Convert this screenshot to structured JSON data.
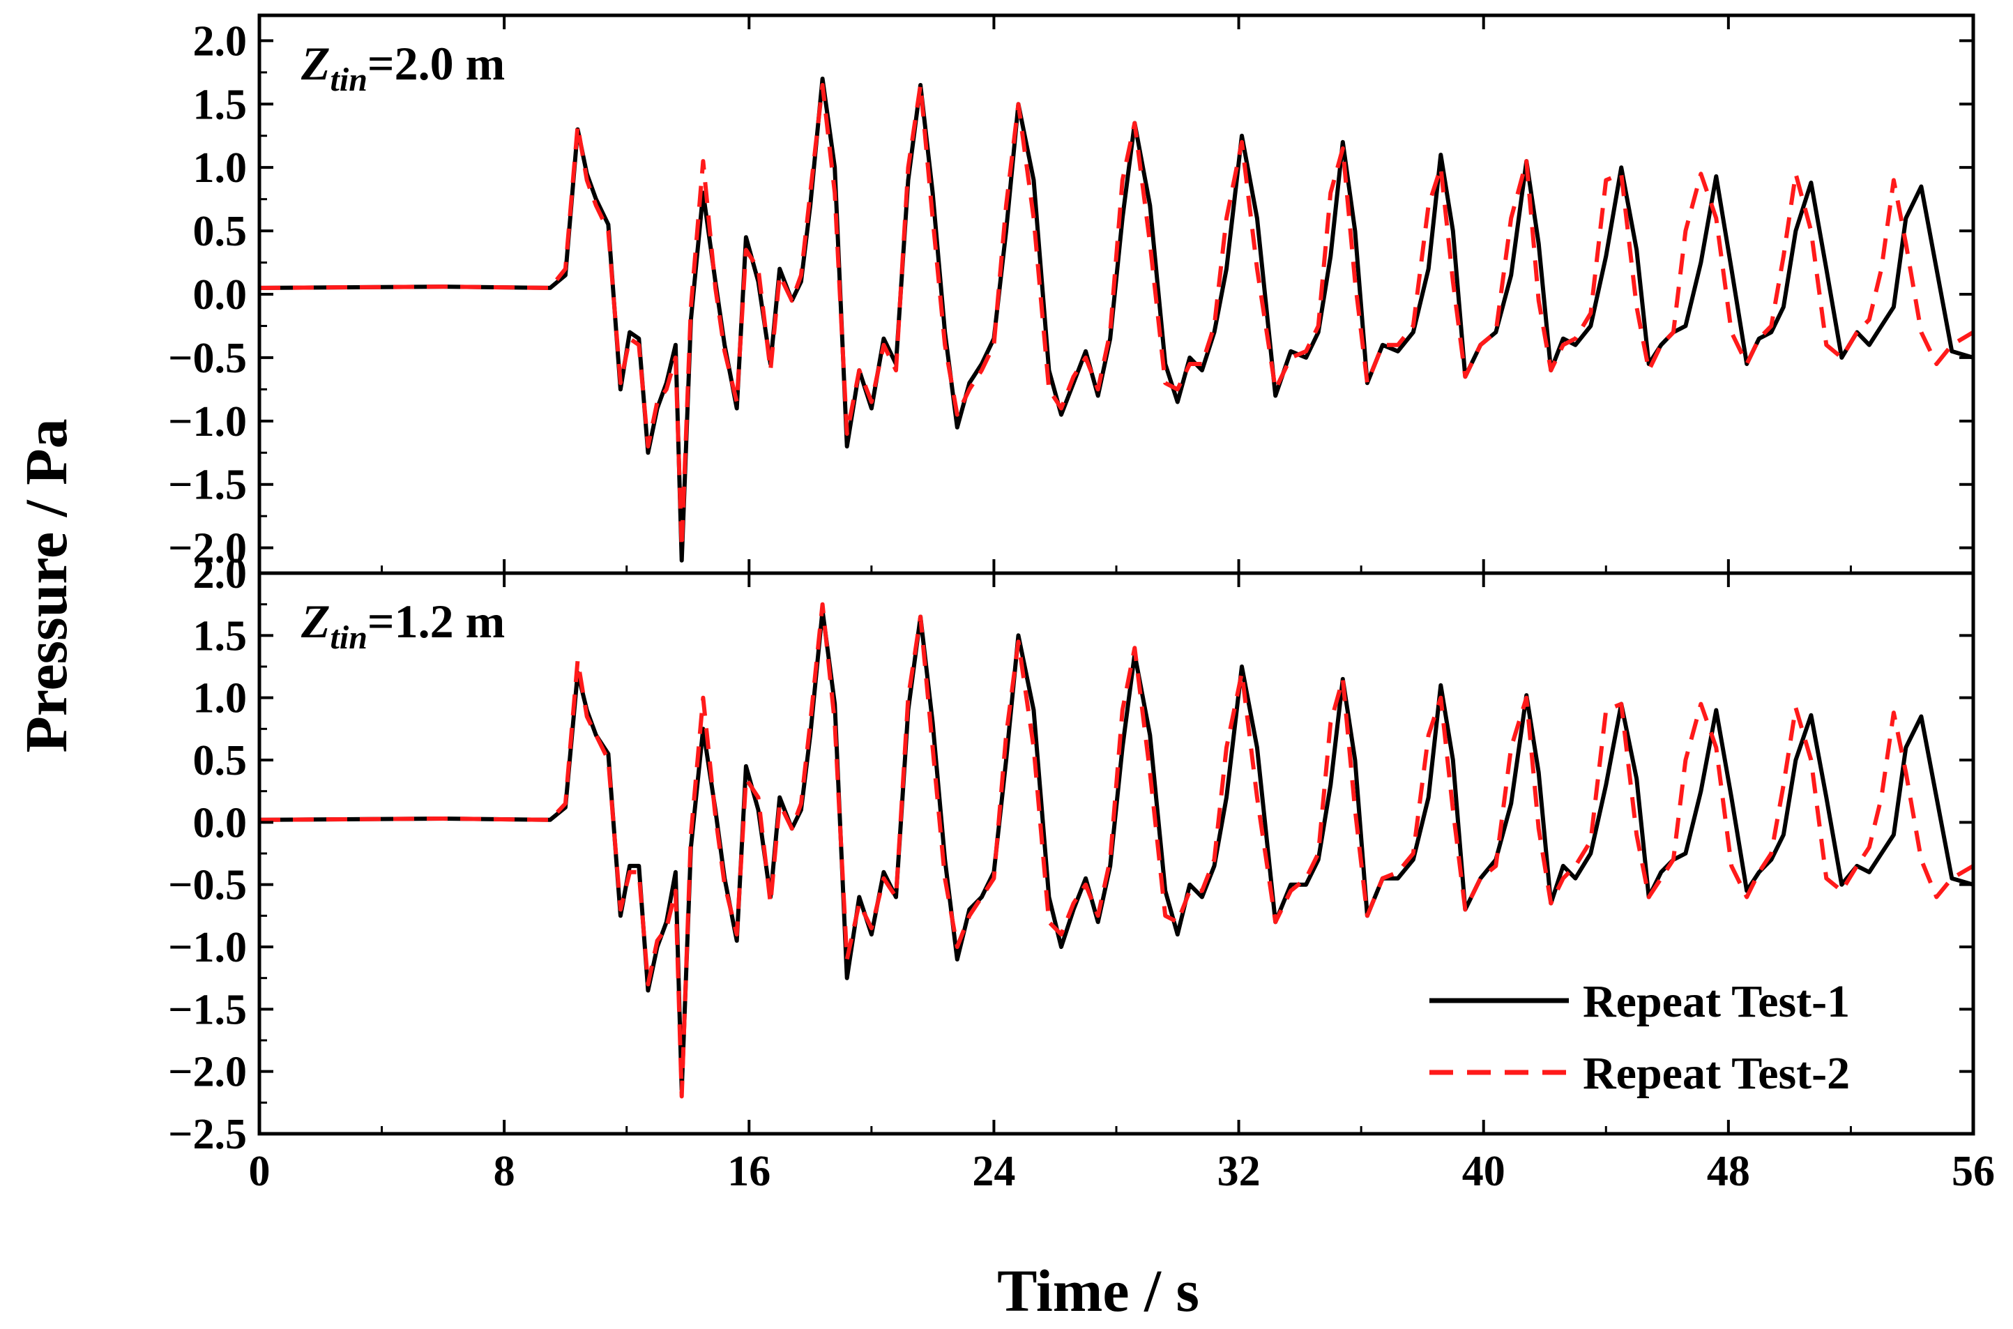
{
  "chart_data": [
    {
      "type": "line",
      "panel": "top",
      "annotation": {
        "var": "Z",
        "sub": "tin",
        "rest": "=2.0 m"
      },
      "xlabel": "Time / s",
      "ylabel": "Pressure / Pa",
      "xlim": [
        0,
        56
      ],
      "ylim": [
        -2.2,
        2.2
      ],
      "xticks": [
        0,
        8,
        16,
        24,
        32,
        40,
        48,
        56
      ],
      "yticks": [
        -2.0,
        -1.5,
        -1.0,
        -0.5,
        0.0,
        0.5,
        1.0,
        1.5,
        2.0
      ],
      "ytick_labels": [
        "−2.0",
        "−1.5",
        "−1.0",
        "−0.5",
        "0.0",
        "0.5",
        "1.0",
        "1.5",
        "2.0"
      ],
      "series": [
        {
          "name": "Repeat Test-1",
          "color": "#000000",
          "dash": "solid",
          "x": [
            0,
            6,
            9.5,
            10,
            10.4,
            10.7,
            11.0,
            11.4,
            11.8,
            12.1,
            12.4,
            12.7,
            13.0,
            13.3,
            13.6,
            13.8,
            14.1,
            14.5,
            14.9,
            15.2,
            15.6,
            15.9,
            16.3,
            16.7,
            17.0,
            17.4,
            17.7,
            18.0,
            18.4,
            18.8,
            19.2,
            19.6,
            20.0,
            20.4,
            20.8,
            21.2,
            21.6,
            22.0,
            22.4,
            22.8,
            23.2,
            23.6,
            24.0,
            24.4,
            24.8,
            25.3,
            25.8,
            26.2,
            26.6,
            27.0,
            27.4,
            27.8,
            28.2,
            28.6,
            29.1,
            29.6,
            30.0,
            30.4,
            30.8,
            31.2,
            31.6,
            32.1,
            32.6,
            33.2,
            33.7,
            34.2,
            34.6,
            35.0,
            35.4,
            35.8,
            36.2,
            36.7,
            37.2,
            37.7,
            38.2,
            38.6,
            39.0,
            39.4,
            39.9,
            40.4,
            40.9,
            41.4,
            41.8,
            42.2,
            42.6,
            43.0,
            43.5,
            44.0,
            44.5,
            45.0,
            45.4,
            45.8,
            46.2,
            46.6,
            47.1,
            47.6,
            48.1,
            48.6,
            49.0,
            49.4,
            49.8,
            50.2,
            50.7,
            51.2,
            51.7,
            52.2,
            52.6,
            53.0,
            53.4,
            53.8,
            54.3,
            54.8,
            55.3,
            56.0
          ],
          "y": [
            0.05,
            0.06,
            0.05,
            0.15,
            1.3,
            0.95,
            0.75,
            0.55,
            -0.75,
            -0.3,
            -0.35,
            -1.25,
            -0.9,
            -0.7,
            -0.4,
            -2.1,
            -0.2,
            0.8,
            0.1,
            -0.4,
            -0.9,
            0.45,
            0.1,
            -0.55,
            0.2,
            -0.05,
            0.1,
            0.7,
            1.7,
            1.0,
            -1.2,
            -0.6,
            -0.9,
            -0.35,
            -0.55,
            0.9,
            1.65,
            0.8,
            -0.3,
            -1.05,
            -0.7,
            -0.55,
            -0.35,
            0.5,
            1.5,
            0.9,
            -0.6,
            -0.95,
            -0.7,
            -0.45,
            -0.8,
            -0.35,
            0.6,
            1.35,
            0.7,
            -0.55,
            -0.85,
            -0.5,
            -0.6,
            -0.3,
            0.2,
            1.25,
            0.6,
            -0.8,
            -0.45,
            -0.5,
            -0.3,
            0.3,
            1.2,
            0.5,
            -0.7,
            -0.4,
            -0.45,
            -0.3,
            0.2,
            1.1,
            0.5,
            -0.65,
            -0.4,
            -0.3,
            0.15,
            1.05,
            0.4,
            -0.6,
            -0.35,
            -0.4,
            -0.25,
            0.3,
            1.0,
            0.35,
            -0.55,
            -0.4,
            -0.3,
            -0.25,
            0.25,
            0.93,
            0.2,
            -0.55,
            -0.35,
            -0.3,
            -0.1,
            0.5,
            0.88,
            0.2,
            -0.5,
            -0.3,
            -0.4,
            -0.25,
            -0.1,
            0.6,
            0.85,
            0.2,
            -0.45,
            -0.5
          ]
        },
        {
          "name": "Repeat Test-2",
          "color": "#ff1a1a",
          "dash": "dashed",
          "x": [
            0,
            6,
            9.5,
            10,
            10.4,
            10.7,
            11.0,
            11.4,
            11.8,
            12.1,
            12.4,
            12.7,
            13.0,
            13.3,
            13.6,
            13.8,
            14.1,
            14.5,
            14.9,
            15.2,
            15.6,
            15.9,
            16.3,
            16.7,
            17.0,
            17.4,
            17.7,
            18.0,
            18.4,
            18.8,
            19.2,
            19.6,
            20.0,
            20.4,
            20.8,
            21.2,
            21.6,
            22.0,
            22.4,
            22.8,
            23.2,
            23.6,
            24.0,
            24.4,
            24.8,
            25.3,
            25.8,
            26.2,
            26.6,
            27.0,
            27.4,
            27.8,
            28.2,
            28.6,
            29.1,
            29.6,
            30.0,
            30.4,
            30.8,
            31.2,
            31.6,
            32.1,
            32.6,
            33.2,
            33.7,
            34.2,
            34.6,
            35.0,
            35.4,
            35.8,
            36.2,
            36.7,
            37.2,
            37.7,
            38.2,
            38.6,
            39.0,
            39.4,
            39.9,
            40.4,
            40.9,
            41.4,
            41.8,
            42.2,
            42.6,
            43.0,
            43.5,
            44.0,
            44.5,
            45.0,
            45.4,
            45.8,
            46.2,
            46.6,
            47.1,
            47.6,
            48.1,
            48.6,
            49.0,
            49.4,
            49.8,
            50.2,
            50.7,
            51.2,
            51.7,
            52.2,
            52.6,
            53.0,
            53.4,
            53.8,
            54.3,
            54.8,
            55.3,
            56.0
          ],
          "y": [
            0.05,
            0.06,
            0.05,
            0.2,
            1.33,
            0.9,
            0.7,
            0.5,
            -0.7,
            -0.35,
            -0.4,
            -1.2,
            -0.85,
            -0.75,
            -0.5,
            -2.0,
            -0.1,
            1.05,
            0.05,
            -0.45,
            -0.85,
            0.35,
            0.2,
            -0.6,
            0.15,
            -0.05,
            0.15,
            0.8,
            1.65,
            0.8,
            -1.1,
            -0.6,
            -0.85,
            -0.4,
            -0.6,
            1.0,
            1.65,
            0.6,
            -0.4,
            -0.95,
            -0.75,
            -0.6,
            -0.4,
            0.7,
            1.5,
            0.6,
            -0.75,
            -0.9,
            -0.65,
            -0.5,
            -0.75,
            -0.3,
            0.9,
            1.35,
            0.4,
            -0.7,
            -0.75,
            -0.55,
            -0.55,
            -0.25,
            0.6,
            1.2,
            0.2,
            -0.75,
            -0.5,
            -0.45,
            -0.25,
            0.8,
            1.15,
            0.1,
            -0.7,
            -0.4,
            -0.4,
            -0.25,
            0.7,
            1.0,
            0.1,
            -0.65,
            -0.4,
            -0.3,
            0.6,
            1.05,
            -0.05,
            -0.6,
            -0.4,
            -0.35,
            -0.15,
            0.9,
            0.95,
            -0.1,
            -0.6,
            -0.4,
            -0.3,
            0.5,
            0.95,
            0.6,
            -0.3,
            -0.55,
            -0.35,
            -0.25,
            0.3,
            0.95,
            0.5,
            -0.4,
            -0.5,
            -0.3,
            -0.2,
            0.2,
            0.9,
            0.4,
            -0.3,
            -0.55,
            -0.4,
            -0.3
          ]
        }
      ]
    },
    {
      "type": "line",
      "panel": "bottom",
      "annotation": {
        "var": "Z",
        "sub": "tin",
        "rest": "=1.2 m"
      },
      "xlabel": "Time / s",
      "ylabel": "Pressure / Pa",
      "xlim": [
        0,
        56
      ],
      "ylim": [
        -2.5,
        2.0
      ],
      "xticks": [
        0,
        8,
        16,
        24,
        32,
        40,
        48,
        56
      ],
      "yticks": [
        -2.5,
        -2.0,
        -1.5,
        -1.0,
        -0.5,
        0.0,
        0.5,
        1.0,
        1.5,
        2.0
      ],
      "ytick_labels": [
        "−2.5",
        "−2.0",
        "−1.5",
        "−1.0",
        "−0.5",
        "0.0",
        "0.5",
        "1.0",
        "1.5",
        "2.0"
      ],
      "series": [
        {
          "name": "Repeat Test-1",
          "color": "#000000",
          "dash": "solid",
          "x": [
            0,
            6,
            9.5,
            10,
            10.4,
            10.7,
            11.0,
            11.4,
            11.8,
            12.1,
            12.4,
            12.7,
            13.0,
            13.3,
            13.6,
            13.8,
            14.1,
            14.5,
            14.9,
            15.2,
            15.6,
            15.9,
            16.3,
            16.7,
            17.0,
            17.4,
            17.7,
            18.0,
            18.4,
            18.8,
            19.2,
            19.6,
            20.0,
            20.4,
            20.8,
            21.2,
            21.6,
            22.0,
            22.4,
            22.8,
            23.2,
            23.6,
            24.0,
            24.4,
            24.8,
            25.3,
            25.8,
            26.2,
            26.6,
            27.0,
            27.4,
            27.8,
            28.2,
            28.6,
            29.1,
            29.6,
            30.0,
            30.4,
            30.8,
            31.2,
            31.6,
            32.1,
            32.6,
            33.2,
            33.7,
            34.2,
            34.6,
            35.0,
            35.4,
            35.8,
            36.2,
            36.7,
            37.2,
            37.7,
            38.2,
            38.6,
            39.0,
            39.4,
            39.9,
            40.4,
            40.9,
            41.4,
            41.8,
            42.2,
            42.6,
            43.0,
            43.5,
            44.0,
            44.5,
            45.0,
            45.4,
            45.8,
            46.2,
            46.6,
            47.1,
            47.6,
            48.1,
            48.6,
            49.0,
            49.4,
            49.8,
            50.2,
            50.7,
            51.2,
            51.7,
            52.2,
            52.6,
            53.0,
            53.4,
            53.8,
            54.3,
            54.8,
            55.3,
            56.0
          ],
          "y": [
            0.02,
            0.03,
            0.02,
            0.12,
            1.2,
            0.9,
            0.7,
            0.55,
            -0.75,
            -0.35,
            -0.35,
            -1.35,
            -1.0,
            -0.8,
            -0.4,
            -2.15,
            -0.2,
            0.75,
            0.1,
            -0.45,
            -0.95,
            0.45,
            0.1,
            -0.6,
            0.2,
            -0.05,
            0.1,
            0.7,
            1.7,
            0.95,
            -1.25,
            -0.6,
            -0.9,
            -0.4,
            -0.6,
            0.9,
            1.65,
            0.8,
            -0.3,
            -1.1,
            -0.7,
            -0.6,
            -0.4,
            0.5,
            1.5,
            0.9,
            -0.6,
            -1.0,
            -0.7,
            -0.45,
            -0.8,
            -0.35,
            0.6,
            1.35,
            0.7,
            -0.55,
            -0.9,
            -0.5,
            -0.6,
            -0.35,
            0.2,
            1.25,
            0.6,
            -0.8,
            -0.5,
            -0.5,
            -0.3,
            0.3,
            1.15,
            0.5,
            -0.75,
            -0.45,
            -0.45,
            -0.3,
            0.2,
            1.1,
            0.5,
            -0.7,
            -0.45,
            -0.3,
            0.15,
            1.02,
            0.4,
            -0.65,
            -0.35,
            -0.45,
            -0.25,
            0.3,
            0.95,
            0.35,
            -0.6,
            -0.4,
            -0.3,
            -0.25,
            0.25,
            0.9,
            0.2,
            -0.55,
            -0.4,
            -0.3,
            -0.1,
            0.5,
            0.86,
            0.2,
            -0.5,
            -0.35,
            -0.4,
            -0.25,
            -0.1,
            0.6,
            0.85,
            0.2,
            -0.45,
            -0.5
          ]
        },
        {
          "name": "Repeat Test-2",
          "color": "#ff1a1a",
          "dash": "dashed",
          "x": [
            0,
            6,
            9.5,
            10,
            10.4,
            10.7,
            11.0,
            11.4,
            11.8,
            12.1,
            12.4,
            12.7,
            13.0,
            13.3,
            13.6,
            13.8,
            14.1,
            14.5,
            14.9,
            15.2,
            15.6,
            15.9,
            16.3,
            16.7,
            17.0,
            17.4,
            17.7,
            18.0,
            18.4,
            18.8,
            19.2,
            19.6,
            20.0,
            20.4,
            20.8,
            21.2,
            21.6,
            22.0,
            22.4,
            22.8,
            23.2,
            23.6,
            24.0,
            24.4,
            24.8,
            25.3,
            25.8,
            26.2,
            26.6,
            27.0,
            27.4,
            27.8,
            28.2,
            28.6,
            29.1,
            29.6,
            30.0,
            30.4,
            30.8,
            31.2,
            31.6,
            32.1,
            32.6,
            33.2,
            33.7,
            34.2,
            34.6,
            35.0,
            35.4,
            35.8,
            36.2,
            36.7,
            37.2,
            37.7,
            38.2,
            38.6,
            39.0,
            39.4,
            39.9,
            40.4,
            40.9,
            41.4,
            41.8,
            42.2,
            42.6,
            43.0,
            43.5,
            44.0,
            44.5,
            45.0,
            45.4,
            45.8,
            46.2,
            46.6,
            47.1,
            47.6,
            48.1,
            48.6,
            49.0,
            49.4,
            49.8,
            50.2,
            50.7,
            51.2,
            51.7,
            52.2,
            52.6,
            53.0,
            53.4,
            53.8,
            54.3,
            54.8,
            55.3,
            56.0
          ],
          "y": [
            0.02,
            0.03,
            0.02,
            0.15,
            1.3,
            0.85,
            0.7,
            0.5,
            -0.7,
            -0.4,
            -0.4,
            -1.3,
            -0.95,
            -0.85,
            -0.55,
            -2.2,
            -0.1,
            1.0,
            0.05,
            -0.5,
            -0.9,
            0.35,
            0.2,
            -0.65,
            0.15,
            -0.05,
            0.15,
            0.8,
            1.75,
            0.8,
            -1.1,
            -0.65,
            -0.85,
            -0.45,
            -0.6,
            1.0,
            1.65,
            0.6,
            -0.45,
            -1.0,
            -0.75,
            -0.6,
            -0.45,
            0.7,
            1.45,
            0.6,
            -0.8,
            -0.9,
            -0.65,
            -0.5,
            -0.75,
            -0.3,
            0.9,
            1.4,
            0.4,
            -0.75,
            -0.8,
            -0.55,
            -0.55,
            -0.3,
            0.6,
            1.2,
            0.2,
            -0.8,
            -0.55,
            -0.45,
            -0.25,
            0.8,
            1.15,
            0.1,
            -0.75,
            -0.45,
            -0.4,
            -0.25,
            0.7,
            1.0,
            0.1,
            -0.7,
            -0.45,
            -0.35,
            0.6,
            1.0,
            -0.05,
            -0.65,
            -0.45,
            -0.35,
            -0.15,
            0.9,
            0.95,
            -0.1,
            -0.6,
            -0.45,
            -0.3,
            0.5,
            0.95,
            0.6,
            -0.35,
            -0.6,
            -0.4,
            -0.25,
            0.3,
            0.92,
            0.5,
            -0.45,
            -0.55,
            -0.35,
            -0.2,
            0.2,
            0.88,
            0.4,
            -0.3,
            -0.6,
            -0.45,
            -0.35
          ]
        }
      ]
    }
  ],
  "legend": {
    "position": "bottom-right",
    "entries": [
      {
        "label": "Repeat Test-1",
        "color": "#000000",
        "dash": "solid"
      },
      {
        "label": "Repeat Test-2",
        "color": "#ff1a1a",
        "dash": "dashed"
      }
    ]
  }
}
